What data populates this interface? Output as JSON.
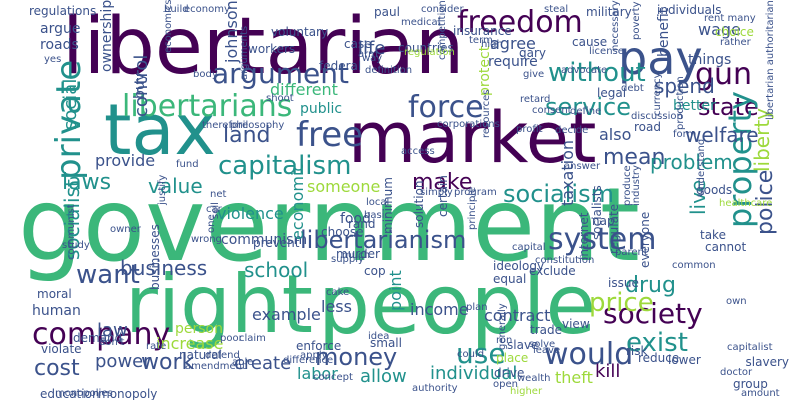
{
  "background": "#ffffff",
  "palette": {
    "purple": "#440154",
    "indigo": "#3b528b",
    "teal": "#21918c",
    "green": "#3bb77a",
    "lime": "#9dd93b",
    "yellow": "#d5e21a"
  },
  "words": [
    {
      "id": "government",
      "text": "government",
      "color": "green"
    },
    {
      "id": "right",
      "text": "right",
      "color": "green"
    },
    {
      "id": "people",
      "text": "people",
      "color": "green"
    },
    {
      "id": "libertarian",
      "text": "libertarian",
      "color": "purple"
    },
    {
      "id": "tax",
      "text": "tax",
      "color": "teal"
    },
    {
      "id": "market",
      "text": "market",
      "color": "purple"
    },
    {
      "id": "libertarians",
      "text": "libertarians",
      "color": "green"
    },
    {
      "id": "force",
      "text": "force",
      "color": "indigo"
    },
    {
      "id": "free",
      "text": "free",
      "color": "indigo"
    },
    {
      "id": "freedom",
      "text": "freedom",
      "color": "purple"
    },
    {
      "id": "pay",
      "text": "pay",
      "color": "indigo"
    },
    {
      "id": "argument",
      "text": "argument",
      "color": "indigo"
    },
    {
      "id": "without",
      "text": "without",
      "color": "teal"
    },
    {
      "id": "gun",
      "text": "gun",
      "color": "purple"
    },
    {
      "id": "state",
      "text": "state",
      "color": "purple"
    },
    {
      "id": "private",
      "text": "private",
      "color": "teal"
    },
    {
      "id": "capitalism",
      "text": "capitalism",
      "color": "teal"
    },
    {
      "id": "service",
      "text": "service",
      "color": "teal"
    },
    {
      "id": "mean",
      "text": "mean",
      "color": "indigo"
    },
    {
      "id": "property",
      "text": "property",
      "color": "teal"
    },
    {
      "id": "libertarianism",
      "text": "libertarianism",
      "color": "indigo"
    },
    {
      "id": "system",
      "text": "system",
      "color": "indigo"
    },
    {
      "id": "society",
      "text": "society",
      "color": "purple"
    },
    {
      "id": "would",
      "text": "would",
      "color": "indigo"
    },
    {
      "id": "company",
      "text": "company",
      "color": "purple"
    },
    {
      "id": "money",
      "text": "money",
      "color": "indigo"
    },
    {
      "id": "use",
      "text": "use",
      "color": "teal"
    },
    {
      "id": "exist",
      "text": "exist",
      "color": "teal"
    },
    {
      "id": "socialism",
      "text": "socialism",
      "color": "teal"
    },
    {
      "id": "make",
      "text": "make",
      "color": "purple"
    },
    {
      "id": "business",
      "text": "business",
      "color": "indigo"
    },
    {
      "id": "school",
      "text": "school",
      "color": "teal"
    },
    {
      "id": "want",
      "text": "want",
      "color": "indigo"
    },
    {
      "id": "laws",
      "text": "laws",
      "color": "teal"
    },
    {
      "id": "value",
      "text": "value",
      "color": "teal"
    },
    {
      "id": "police",
      "text": "police",
      "color": "indigo"
    },
    {
      "id": "live",
      "text": "live",
      "color": "teal"
    },
    {
      "id": "price",
      "text": "price",
      "color": "lime"
    },
    {
      "id": "drug",
      "text": "drug",
      "color": "teal"
    },
    {
      "id": "work",
      "text": "work",
      "color": "indigo"
    },
    {
      "id": "cost",
      "text": "cost",
      "color": "indigo"
    },
    {
      "id": "socialist",
      "text": "socialist",
      "color": "teal"
    },
    {
      "id": "land",
      "text": "land",
      "color": "indigo"
    },
    {
      "id": "spend",
      "text": "spend",
      "color": "indigo"
    },
    {
      "id": "problem",
      "text": "problem",
      "color": "teal"
    },
    {
      "id": "welfare",
      "text": "welfare",
      "color": "indigo"
    },
    {
      "id": "liberty",
      "text": "liberty",
      "color": "lime"
    },
    {
      "id": "social",
      "text": "social",
      "color": "teal"
    },
    {
      "id": "control",
      "text": "control",
      "color": "indigo"
    },
    {
      "id": "someone",
      "text": "someone",
      "color": "lime"
    },
    {
      "id": "example",
      "text": "example",
      "color": "indigo"
    },
    {
      "id": "contract",
      "text": "contract",
      "color": "indigo"
    },
    {
      "id": "income",
      "text": "income",
      "color": "indigo"
    },
    {
      "id": "law",
      "text": "law",
      "color": "indigo"
    },
    {
      "id": "create",
      "text": "create",
      "color": "indigo"
    },
    {
      "id": "labor",
      "text": "labor",
      "color": "teal"
    },
    {
      "id": "allow",
      "text": "allow",
      "color": "teal"
    },
    {
      "id": "individual",
      "text": "individual",
      "color": "teal"
    },
    {
      "id": "theft",
      "text": "theft",
      "color": "lime"
    },
    {
      "id": "kill",
      "text": "kill",
      "color": "purple"
    },
    {
      "id": "power",
      "text": "power",
      "color": "indigo"
    },
    {
      "id": "provide",
      "text": "provide",
      "color": "indigo"
    },
    {
      "id": "life",
      "text": "life",
      "color": "indigo"
    },
    {
      "id": "wage",
      "text": "wage",
      "color": "indigo"
    },
    {
      "id": "different",
      "text": "different",
      "color": "green"
    },
    {
      "id": "agree",
      "text": "agree",
      "color": "indigo"
    },
    {
      "id": "require",
      "text": "require",
      "color": "indigo"
    },
    {
      "id": "public",
      "text": "public",
      "color": "teal"
    },
    {
      "id": "federal",
      "text": "federal",
      "color": "indigo"
    },
    {
      "id": "violence",
      "text": "violence",
      "color": "teal"
    },
    {
      "id": "communism",
      "text": "communism",
      "color": "indigo"
    },
    {
      "id": "taxation",
      "text": "taxation",
      "color": "indigo"
    },
    {
      "id": "food",
      "text": "food",
      "color": "indigo"
    },
    {
      "id": "economic",
      "text": "economic",
      "color": "teal"
    },
    {
      "id": "less",
      "text": "less",
      "color": "indigo"
    },
    {
      "id": "point",
      "text": "point",
      "color": "teal"
    },
    {
      "id": "increase",
      "text": "increase",
      "color": "lime"
    },
    {
      "id": "human",
      "text": "human",
      "color": "indigo"
    },
    {
      "id": "johnson",
      "text": "johnson",
      "color": "indigo"
    },
    {
      "id": "also",
      "text": "also",
      "color": "indigo"
    },
    {
      "id": "argue",
      "text": "argue",
      "color": "indigo"
    },
    {
      "id": "roads",
      "text": "roads",
      "color": "indigo"
    },
    {
      "id": "buy",
      "text": "buy",
      "color": "indigo"
    },
    {
      "id": "better",
      "text": "better",
      "color": "teal"
    },
    {
      "id": "things",
      "text": "things",
      "color": "indigo"
    },
    {
      "id": "benefit",
      "text": "benefit",
      "color": "indigo"
    },
    {
      "id": "ownership",
      "text": "ownership",
      "color": "indigo"
    },
    {
      "id": "protect",
      "text": "protect",
      "color": "lime"
    },
    {
      "id": "regulations",
      "text": "regulations",
      "color": "indigo"
    },
    {
      "id": "economy",
      "text": "economy",
      "color": "indigo"
    },
    {
      "id": "insurance",
      "text": "insurance",
      "color": "indigo"
    },
    {
      "id": "countries",
      "text": "countries",
      "color": "indigo"
    },
    {
      "id": "person",
      "text": "person",
      "color": "lime"
    },
    {
      "id": "demand",
      "text": "demand",
      "color": "indigo"
    },
    {
      "id": "violate",
      "text": "violate",
      "color": "indigo"
    },
    {
      "id": "education",
      "text": "education",
      "color": "indigo"
    },
    {
      "id": "monopoly",
      "text": "monopoly",
      "color": "indigo"
    },
    {
      "id": "natural",
      "text": "natural",
      "color": "indigo"
    },
    {
      "id": "enforce",
      "text": "enforce",
      "color": "indigo"
    },
    {
      "id": "small",
      "text": "small",
      "color": "indigo"
    },
    {
      "id": "trade",
      "text": "trade",
      "color": "indigo"
    },
    {
      "id": "reduce",
      "text": "reduce",
      "color": "indigo"
    },
    {
      "id": "group",
      "text": "group",
      "color": "indigo"
    },
    {
      "id": "amount",
      "text": "amount",
      "color": "indigo"
    },
    {
      "id": "slavery",
      "text": "slavery",
      "color": "indigo"
    },
    {
      "id": "cannot",
      "text": "cannot",
      "color": "indigo"
    },
    {
      "id": "take",
      "text": "take",
      "color": "indigo"
    },
    {
      "id": "goods",
      "text": "goods",
      "color": "indigo"
    },
    {
      "id": "healthcare",
      "text": "healthcare",
      "color": "lime"
    },
    {
      "id": "form",
      "text": "form",
      "color": "indigo"
    },
    {
      "id": "rather",
      "text": "rather",
      "color": "indigo"
    },
    {
      "id": "choice",
      "text": "choice",
      "color": "lime"
    },
    {
      "id": "rent",
      "text": "rent many",
      "color": "indigo"
    },
    {
      "id": "poor",
      "text": "poor",
      "color": "indigo"
    },
    {
      "id": "claim",
      "text": "claim",
      "color": "indigo"
    },
    {
      "id": "lower",
      "text": "lower",
      "color": "indigo"
    },
    {
      "id": "wealth",
      "text": "wealth",
      "color": "indigo"
    },
    {
      "id": "military",
      "text": "military",
      "color": "indigo"
    },
    {
      "id": "fund",
      "text": "fund",
      "color": "indigo"
    },
    {
      "id": "murder",
      "text": "murder",
      "color": "indigo"
    },
    {
      "id": "prevent",
      "text": "prevent",
      "color": "indigo"
    },
    {
      "id": "choose",
      "text": "choose",
      "color": "indigo"
    },
    {
      "id": "basic",
      "text": "basic",
      "color": "indigo"
    },
    {
      "id": "rand",
      "text": "rand",
      "color": "indigo"
    },
    {
      "id": "cop",
      "text": "cop",
      "color": "indigo"
    },
    {
      "id": "ideology",
      "text": "ideology",
      "color": "indigo"
    },
    {
      "id": "equal",
      "text": "equal",
      "color": "indigo"
    },
    {
      "id": "exclude",
      "text": "exclude",
      "color": "indigo"
    },
    {
      "id": "issue",
      "text": "issue",
      "color": "indigo"
    },
    {
      "id": "risk",
      "text": "risk",
      "color": "indigo"
    },
    {
      "id": "view",
      "text": "view",
      "color": "indigo"
    },
    {
      "id": "drive",
      "text": "drive",
      "color": "indigo"
    },
    {
      "id": "place",
      "text": "place",
      "color": "lime"
    },
    {
      "id": "slave",
      "text": "slave",
      "color": "indigo"
    },
    {
      "id": "moral",
      "text": "moral",
      "color": "indigo"
    },
    {
      "id": "study",
      "text": "study",
      "color": "indigo"
    },
    {
      "id": "communist",
      "text": "communist",
      "color": "indigo"
    },
    {
      "id": "businesses",
      "text": "businesses",
      "color": "indigo"
    },
    {
      "id": "case",
      "text": "case",
      "color": "indigo"
    },
    {
      "id": "voluntary",
      "text": "voluntary",
      "color": "indigo"
    },
    {
      "id": "workers",
      "text": "workers",
      "color": "indigo"
    },
    {
      "id": "paul",
      "text": "paul",
      "color": "indigo"
    },
    {
      "id": "medical",
      "text": "medical",
      "color": "indigo"
    },
    {
      "id": "steal",
      "text": "steal",
      "color": "indigo"
    },
    {
      "id": "individuals",
      "text": "individuals",
      "color": "indigo"
    },
    {
      "id": "competition",
      "text": "competition",
      "color": "indigo"
    },
    {
      "id": "definition",
      "text": "definition",
      "color": "indigo"
    },
    {
      "id": "consent",
      "text": "consent",
      "color": "indigo"
    },
    {
      "id": "retard",
      "text": "retard",
      "color": "indigo"
    },
    {
      "id": "decide",
      "text": "decide",
      "color": "indigo"
    },
    {
      "id": "cause",
      "text": "cause",
      "color": "indigo"
    },
    {
      "id": "license",
      "text": "license",
      "color": "indigo"
    },
    {
      "id": "poverty",
      "text": "poverty",
      "color": "indigo"
    },
    {
      "id": "production",
      "text": "production",
      "color": "indigo"
    },
    {
      "id": "libertarian_authoritarian",
      "text": "libertarian authoritarian",
      "color": "indigo"
    },
    {
      "id": "capital",
      "text": "capital",
      "color": "indigo"
    },
    {
      "id": "solve",
      "text": "solve",
      "color": "indigo"
    },
    {
      "id": "higher",
      "text": "higher",
      "color": "lime"
    },
    {
      "id": "supply",
      "text": "supply",
      "color": "indigo"
    },
    {
      "id": "constitution",
      "text": "constitution",
      "color": "indigo"
    },
    {
      "id": "internet",
      "text": "internet",
      "color": "indigo"
    },
    {
      "id": "regulate",
      "text": "regulate",
      "color": "indigo"
    },
    {
      "id": "socialists",
      "text": "socialists",
      "color": "indigo"
    },
    {
      "id": "common",
      "text": "common",
      "color": "indigo"
    },
    {
      "id": "everyone",
      "text": "everyone",
      "color": "indigo"
    },
    {
      "id": "parent",
      "text": "parent",
      "color": "indigo"
    },
    {
      "id": "industry",
      "text": "industry",
      "color": "indigo"
    },
    {
      "id": "solution",
      "text": "solution",
      "color": "indigo"
    },
    {
      "id": "minimum",
      "text": "minimum",
      "color": "indigo"
    },
    {
      "id": "certain",
      "text": "certain",
      "color": "indigo"
    },
    {
      "id": "principle",
      "text": "principle",
      "color": "indigo"
    },
    {
      "id": "program",
      "text": "program",
      "color": "indigo"
    },
    {
      "id": "access",
      "text": "access",
      "color": "indigo"
    },
    {
      "id": "local",
      "text": "local",
      "color": "indigo"
    },
    {
      "id": "simply",
      "text": "simply",
      "color": "indigo"
    },
    {
      "id": "car",
      "text": "car",
      "color": "indigo"
    },
    {
      "id": "therefore",
      "text": "therefore",
      "color": "indigo"
    },
    {
      "id": "philosophy",
      "text": "philosophy",
      "color": "indigo"
    },
    {
      "id": "shoot",
      "text": "shoot",
      "color": "indigo"
    },
    {
      "id": "arguments",
      "text": "arguments",
      "color": "indigo"
    },
    {
      "id": "build",
      "text": "build",
      "color": "indigo"
    },
    {
      "id": "economics",
      "text": "economics",
      "color": "indigo"
    },
    {
      "id": "body",
      "text": "body",
      "color": "indigo"
    },
    {
      "id": "yes",
      "text": "yes",
      "color": "indigo"
    },
    {
      "id": "way",
      "text": "way",
      "color": "indigo"
    },
    {
      "id": "consider",
      "text": "consider",
      "color": "indigo"
    },
    {
      "id": "regulation",
      "text": "regulation",
      "color": "lime"
    },
    {
      "id": "gary",
      "text": "gary",
      "color": "indigo"
    },
    {
      "id": "give",
      "text": "give",
      "color": "indigo"
    },
    {
      "id": "advocate",
      "text": "advocate",
      "color": "indigo"
    },
    {
      "id": "legal",
      "text": "legal",
      "color": "indigo"
    },
    {
      "id": "profit",
      "text": "profit",
      "color": "indigo"
    },
    {
      "id": "corporations",
      "text": "corporations",
      "color": "indigo"
    },
    {
      "id": "resources",
      "text": "resources",
      "color": "indigo"
    },
    {
      "id": "define",
      "text": "define",
      "color": "indigo"
    },
    {
      "id": "debt",
      "text": "debt",
      "color": "indigo"
    },
    {
      "id": "discussion",
      "text": "discussion",
      "color": "indigo"
    },
    {
      "id": "nap",
      "text": "nap",
      "color": "indigo"
    },
    {
      "id": "road",
      "text": "road",
      "color": "indigo"
    },
    {
      "id": "owner",
      "text": "owner",
      "color": "indigo"
    },
    {
      "id": "able",
      "text": "able",
      "color": "indigo"
    },
    {
      "id": "concept",
      "text": "concept",
      "color": "indigo"
    },
    {
      "id": "cake",
      "text": "cake",
      "color": "indigo"
    },
    {
      "id": "amendment",
      "text": "amendment",
      "color": "indigo"
    },
    {
      "id": "difference",
      "text": "difference",
      "color": "indigo"
    },
    {
      "id": "authority",
      "text": "authority",
      "color": "indigo"
    },
    {
      "id": "open",
      "text": "open",
      "color": "indigo"
    },
    {
      "id": "doctor",
      "text": "doctor",
      "color": "indigo"
    },
    {
      "id": "capitalist",
      "text": "capitalist",
      "color": "indigo"
    },
    {
      "id": "apply",
      "text": "apply",
      "color": "indigo"
    },
    {
      "id": "ron",
      "text": "ron",
      "color": "indigo"
    },
    {
      "id": "dont",
      "text": "don't",
      "color": "indigo"
    },
    {
      "id": "net",
      "text": "net",
      "color": "indigo"
    },
    {
      "id": "idea",
      "text": "idea",
      "color": "indigo"
    },
    {
      "id": "defend",
      "text": "defend",
      "color": "indigo"
    },
    {
      "id": "rate",
      "text": "rate",
      "color": "indigo"
    },
    {
      "id": "wrong",
      "text": "wrong",
      "color": "indigo"
    },
    {
      "id": "sell",
      "text": "sell",
      "color": "indigo"
    },
    {
      "id": "one",
      "text": "one",
      "color": "indigo"
    },
    {
      "id": "much",
      "text": "much",
      "color": "indigo"
    },
    {
      "id": "could",
      "text": "could",
      "color": "indigo"
    },
    {
      "id": "arm",
      "text": "arm",
      "color": "indigo"
    },
    {
      "id": "term",
      "text": "term",
      "color": "indigo"
    },
    {
      "id": "high",
      "text": "high",
      "color": "indigo"
    },
    {
      "id": "necessary",
      "text": "necessary",
      "color": "indigo"
    },
    {
      "id": "currency",
      "text": "currency",
      "color": "indigo"
    },
    {
      "id": "answer",
      "text": "answer",
      "color": "indigo"
    },
    {
      "id": "monopolies",
      "text": "monopolies",
      "color": "indigo"
    },
    {
      "id": "justify",
      "text": "justify",
      "color": "indigo"
    },
    {
      "id": "plan",
      "text": "plan",
      "color": "indigo"
    },
    {
      "id": "own",
      "text": "own",
      "color": "indigo"
    },
    {
      "id": "understand",
      "text": "understand",
      "color": "indigo"
    },
    {
      "id": "generally",
      "text": "generally",
      "color": "indigo"
    },
    {
      "id": "leave",
      "text": "leave",
      "color": "indigo"
    },
    {
      "id": "produce",
      "text": "produce",
      "color": "indigo"
    }
  ]
}
